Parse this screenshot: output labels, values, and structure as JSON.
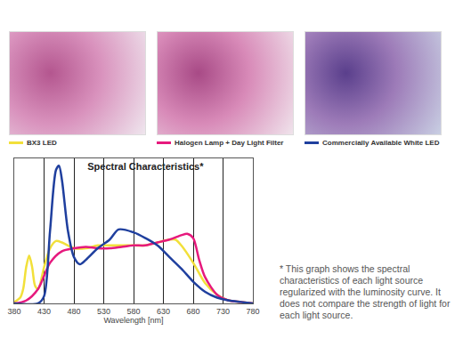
{
  "chart_data": {
    "type": "line",
    "title": "Spectral Characteristics*",
    "xlabel": "Wavelength [nm]",
    "xlim": [
      380,
      780
    ],
    "xticks": [
      380,
      430,
      480,
      530,
      580,
      630,
      680,
      730,
      780
    ],
    "ylim": [
      0,
      100
    ],
    "grid": true,
    "tick_labels": "x",
    "legend": "top",
    "annotations": [
      "* This graph shows the spectral characteristics of each light source regularized with the luminosity curve. It does not compare the strength of light for each light source."
    ],
    "series": [
      {
        "name": "BX3 LED",
        "color": "#f2e03a",
        "x": [
          380,
          390,
          395,
          400,
          405,
          410,
          415,
          420,
          430,
          440,
          450,
          460,
          480,
          500,
          520,
          540,
          560,
          580,
          600,
          620,
          640,
          650,
          660,
          680,
          700,
          720,
          740,
          760,
          780
        ],
        "values": [
          1,
          4,
          10,
          25,
          33,
          25,
          12,
          10,
          25,
          38,
          43,
          42,
          38,
          38,
          40,
          40,
          40,
          40,
          40,
          42,
          44,
          44,
          40,
          28,
          14,
          6,
          2,
          1,
          0
        ]
      },
      {
        "name": "Halogen Lamp + Day Light Filter",
        "color": "#e6197d",
        "x": [
          380,
          400,
          420,
          440,
          460,
          480,
          500,
          520,
          540,
          560,
          580,
          600,
          620,
          640,
          660,
          670,
          680,
          690,
          700,
          720,
          740,
          760,
          780
        ],
        "values": [
          0,
          2,
          10,
          28,
          36,
          38,
          39,
          38,
          38,
          39,
          40,
          40,
          42,
          44,
          47,
          48,
          45,
          30,
          18,
          6,
          2,
          1,
          0
        ]
      },
      {
        "name": "Commercially Available White LED",
        "color": "#1f3f9e",
        "x": [
          380,
          420,
          430,
          440,
          450,
          455,
          460,
          470,
          480,
          490,
          500,
          520,
          540,
          555,
          580,
          600,
          620,
          640,
          660,
          680,
          700,
          720,
          740,
          760,
          780
        ],
        "values": [
          0,
          0,
          5,
          50,
          92,
          95,
          85,
          50,
          32,
          27,
          30,
          38,
          44,
          51,
          49,
          45,
          40,
          32,
          24,
          15,
          8,
          4,
          2,
          1,
          0
        ]
      }
    ]
  }
}
